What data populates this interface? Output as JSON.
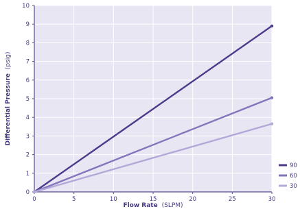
{
  "chart_data": {
    "type": "line",
    "xlabel_bold": "Flow Rate",
    "xlabel_unit": "(SLPM)",
    "ylabel_bold": "Differential Pressure",
    "ylabel_unit": "(psig)",
    "xlim": [
      0,
      30
    ],
    "ylim": [
      0,
      10
    ],
    "x_ticks": [
      "0",
      "5",
      "10",
      "15",
      "20",
      "25",
      "30"
    ],
    "y_ticks": [
      "0",
      "1",
      "2",
      "3",
      "4",
      "5",
      "6",
      "7",
      "8",
      "9",
      "10"
    ],
    "grid": true,
    "legend_position": "bottom-right",
    "series": [
      {
        "name": "90",
        "color": "#4e3a8a",
        "x": [
          0,
          30
        ],
        "y": [
          0,
          8.9
        ]
      },
      {
        "name": "60",
        "color": "#8474bb",
        "x": [
          0,
          30
        ],
        "y": [
          0,
          5.05
        ]
      },
      {
        "name": "30",
        "color": "#b3a8d7",
        "x": [
          0,
          30
        ],
        "y": [
          0,
          3.65
        ]
      }
    ],
    "colors": {
      "plot_background": "#e8e6f3",
      "grid": "#ffffff",
      "axis": "#5a4a96",
      "text": "#4a3a85"
    }
  }
}
